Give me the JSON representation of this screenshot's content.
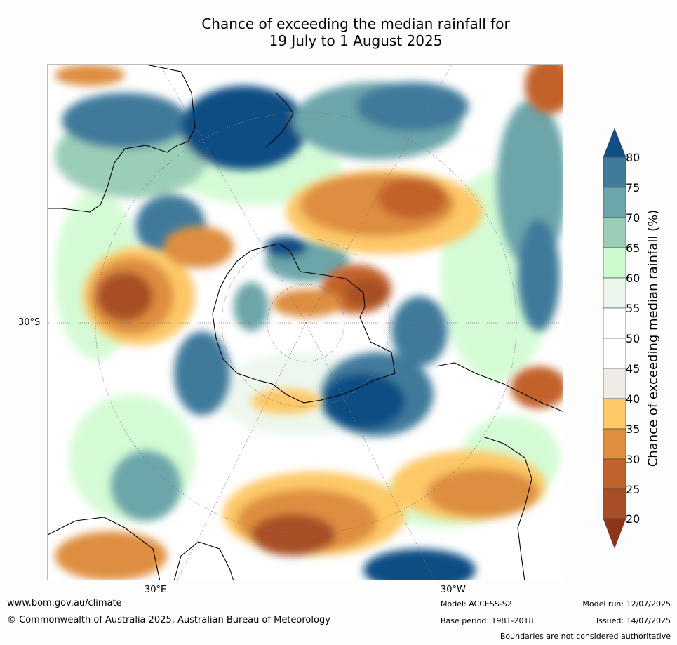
{
  "title": {
    "line1": "Chance of exceeding the median rainfall for",
    "line2": "19 July to 1 August 2025"
  },
  "map": {
    "projection": "south-polar stereographic",
    "lat_label": "30°S",
    "lon_labels": [
      "30°E",
      "30°W"
    ]
  },
  "colorbar": {
    "title": "Chance of exceeding median rainfall (%)",
    "ticks": [
      "20",
      "25",
      "30",
      "35",
      "40",
      "45",
      "50",
      "55",
      "60",
      "65",
      "70",
      "75",
      "80"
    ],
    "colors": {
      "below20": "#8e3418",
      "20-25": "#a84f27",
      "25-30": "#c2622c",
      "30-35": "#de8e3f",
      "35-40": "#fdc866",
      "40-45": "#eeeae6",
      "45-50": "#ffffff",
      "50-55": "#ffffff",
      "55-60": "#eaf6ec",
      "60-65": "#cdfbce",
      "65-70": "#9bceb7",
      "70-75": "#6ca5aa",
      "75-80": "#417a9b",
      "above80": "#114e84"
    }
  },
  "footer": {
    "website": "www.bom.gov.au/climate",
    "copyright": "© Commonwealth of Australia 2025, Australian Bureau of Meteorology",
    "model": "Model: ACCESS-S2",
    "base_period": "Base period: 1981-2018",
    "model_run": "Model run: 12/07/2025",
    "issued": "Issued: 14/07/2025",
    "disclaimer": "Boundaries are not considered authoritative"
  }
}
